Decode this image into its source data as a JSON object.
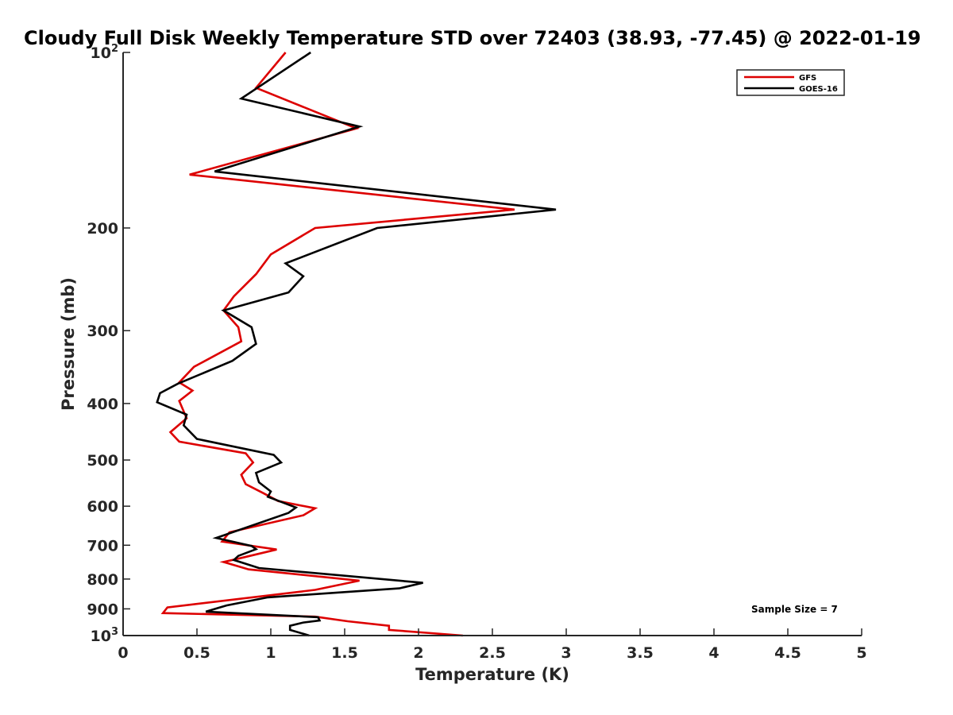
{
  "chart_data": {
    "type": "line",
    "title": "Cloudy Full Disk Weekly Temperature STD over 72403 (38.93, -77.45) @ 2022-01-19",
    "xlabel": "Temperature (K)",
    "ylabel": "Pressure (mb)",
    "xlim": [
      0,
      5
    ],
    "ylim": [
      100,
      1000
    ],
    "y_scale": "log",
    "y_reversed": true,
    "grid": false,
    "legend_position": "top-right",
    "x_ticks": [
      "0",
      "0.5",
      "1",
      "1.5",
      "2",
      "2.5",
      "3",
      "3.5",
      "4",
      "4.5",
      "5"
    ],
    "y_ticks": [
      {
        "value": 100,
        "base": "10",
        "exp": "2"
      },
      {
        "value": 200,
        "label": "200"
      },
      {
        "value": 300,
        "label": "300"
      },
      {
        "value": 400,
        "label": "400"
      },
      {
        "value": 500,
        "label": "500"
      },
      {
        "value": 600,
        "label": "600"
      },
      {
        "value": 700,
        "label": "700"
      },
      {
        "value": 800,
        "label": "800"
      },
      {
        "value": 900,
        "label": "900"
      },
      {
        "value": 1000,
        "base": "10",
        "exp": "3"
      }
    ],
    "annotation": "Sample Size = 7",
    "series": [
      {
        "name": "GFS",
        "color": "#dd0000",
        "points": [
          [
            1.1,
            100
          ],
          [
            0.9,
            115
          ],
          [
            1.58,
            135
          ],
          [
            0.45,
            162
          ],
          [
            2.65,
            186
          ],
          [
            1.3,
            200
          ],
          [
            1.0,
            222
          ],
          [
            0.9,
            240
          ],
          [
            0.75,
            262
          ],
          [
            0.68,
            277
          ],
          [
            0.78,
            296
          ],
          [
            0.8,
            313
          ],
          [
            0.48,
            346
          ],
          [
            0.38,
            368
          ],
          [
            0.47,
            380
          ],
          [
            0.38,
            396
          ],
          [
            0.43,
            424
          ],
          [
            0.32,
            448
          ],
          [
            0.38,
            465
          ],
          [
            0.83,
            487
          ],
          [
            0.88,
            505
          ],
          [
            0.8,
            530
          ],
          [
            0.83,
            550
          ],
          [
            0.95,
            570
          ],
          [
            1.05,
            588
          ],
          [
            1.3,
            605
          ],
          [
            1.22,
            622
          ],
          [
            0.72,
            665
          ],
          [
            0.67,
            690
          ],
          [
            1.04,
            712
          ],
          [
            0.78,
            738
          ],
          [
            0.68,
            748
          ],
          [
            0.85,
            770
          ],
          [
            1.6,
            805
          ],
          [
            1.3,
            835
          ],
          [
            0.3,
            895
          ],
          [
            0.27,
            915
          ],
          [
            1.3,
            928
          ],
          [
            1.52,
            945
          ],
          [
            1.8,
            962
          ],
          [
            1.8,
            978
          ],
          [
            2.3,
            1000
          ]
        ]
      },
      {
        "name": "GOES-16",
        "color": "#000000",
        "points": [
          [
            1.27,
            100
          ],
          [
            0.8,
            120
          ],
          [
            1.6,
            134
          ],
          [
            0.62,
            160
          ],
          [
            2.93,
            186
          ],
          [
            1.72,
            200
          ],
          [
            1.1,
            230
          ],
          [
            1.22,
            242
          ],
          [
            1.12,
            258
          ],
          [
            0.68,
            277
          ],
          [
            0.87,
            296
          ],
          [
            0.9,
            316
          ],
          [
            0.74,
            338
          ],
          [
            0.37,
            370
          ],
          [
            0.25,
            384
          ],
          [
            0.23,
            398
          ],
          [
            0.43,
            418
          ],
          [
            0.41,
            436
          ],
          [
            0.5,
            460
          ],
          [
            1.02,
            490
          ],
          [
            1.07,
            505
          ],
          [
            0.9,
            526
          ],
          [
            0.92,
            546
          ],
          [
            1.0,
            566
          ],
          [
            0.98,
            578
          ],
          [
            1.17,
            603
          ],
          [
            1.12,
            616
          ],
          [
            0.63,
            680
          ],
          [
            0.87,
            702
          ],
          [
            0.9,
            711
          ],
          [
            0.78,
            730
          ],
          [
            0.75,
            742
          ],
          [
            0.92,
            766
          ],
          [
            2.03,
            812
          ],
          [
            1.87,
            830
          ],
          [
            0.98,
            860
          ],
          [
            0.7,
            888
          ],
          [
            0.56,
            910
          ],
          [
            1.32,
            930
          ],
          [
            1.33,
            942
          ],
          [
            1.22,
            950
          ],
          [
            1.13,
            962
          ],
          [
            1.13,
            978
          ],
          [
            1.26,
            1000
          ]
        ]
      }
    ]
  }
}
